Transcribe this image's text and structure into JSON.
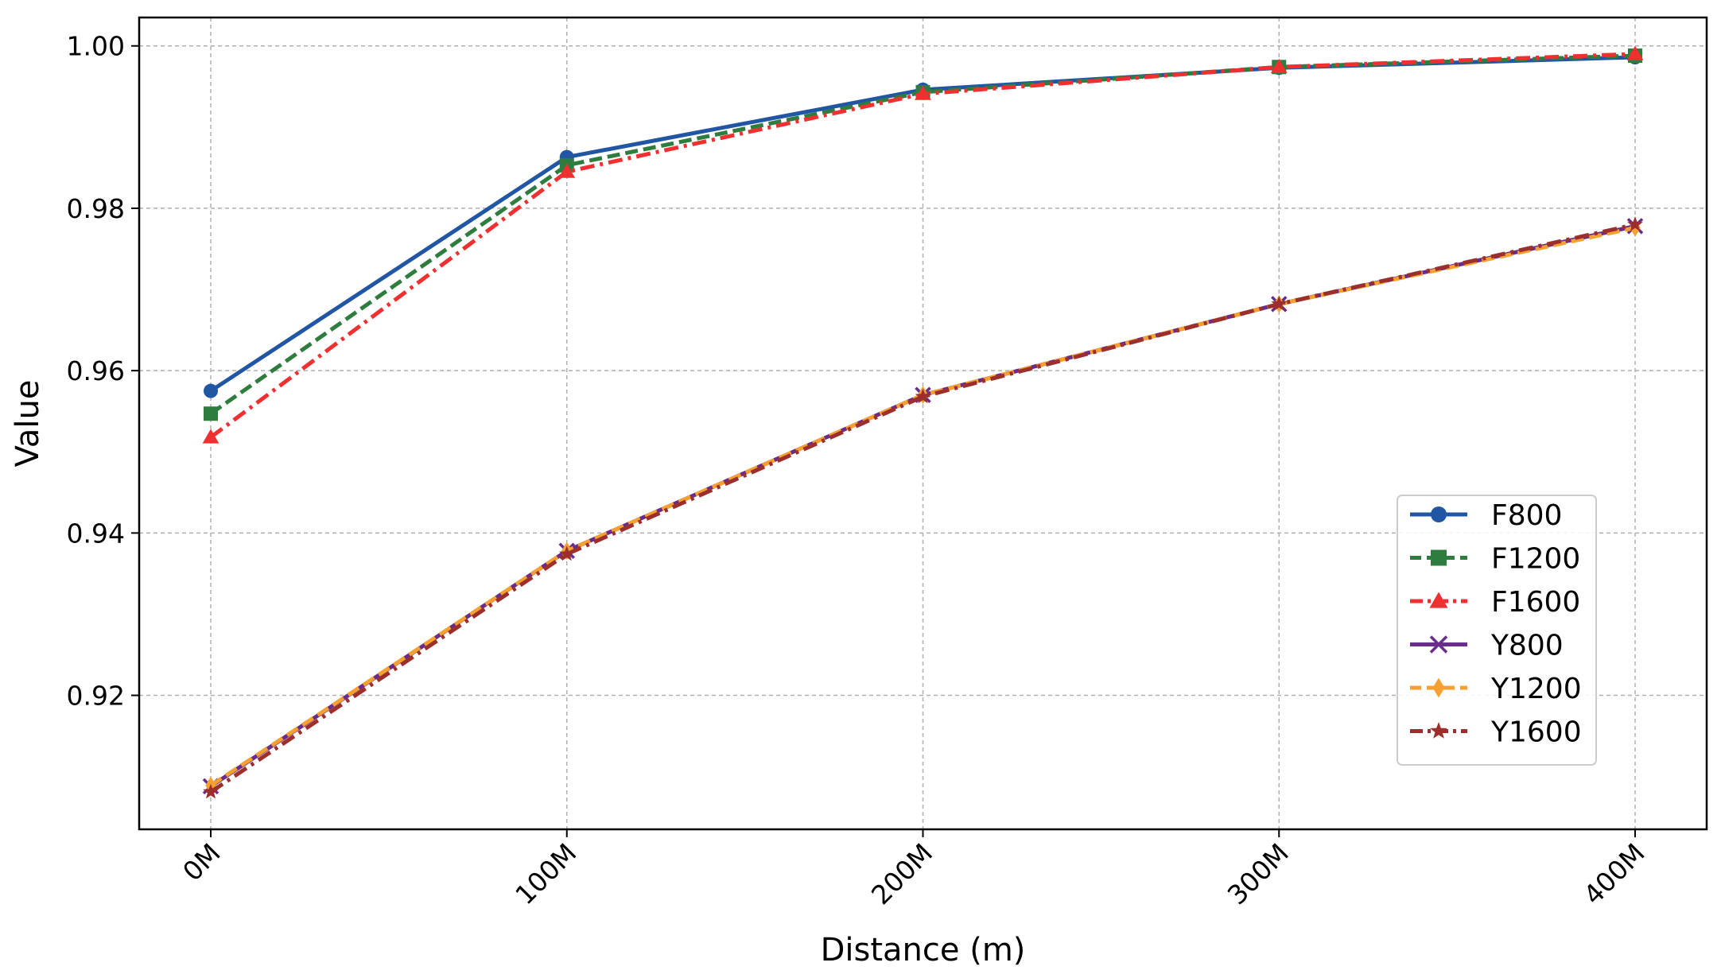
{
  "chart_data": {
    "type": "line",
    "title": "",
    "xlabel": "Distance (m)",
    "ylabel": "Value",
    "categories": [
      "0M",
      "100M",
      "200M",
      "300M",
      "400M"
    ],
    "ylim": [
      0.9035,
      1.0035
    ],
    "yticks": [
      "0.92",
      "0.94",
      "0.96",
      "0.98",
      "1.00"
    ],
    "grid": true,
    "legend_position": "lower-right",
    "series": [
      {
        "name": "F800",
        "values": [
          0.9575,
          0.9863,
          0.9946,
          0.9973,
          0.9986
        ],
        "color": "#2156a5",
        "marker": "circle",
        "dash": "solid"
      },
      {
        "name": "F1200",
        "values": [
          0.9547,
          0.9853,
          0.9943,
          0.9974,
          0.9988
        ],
        "color": "#2e7d3e",
        "marker": "square",
        "dash": "dashed"
      },
      {
        "name": "F1600",
        "values": [
          0.9518,
          0.9845,
          0.9941,
          0.9974,
          0.999
        ],
        "color": "#f03030",
        "marker": "triangle",
        "dash": "dashdot"
      },
      {
        "name": "Y800",
        "values": [
          0.9088,
          0.9378,
          0.957,
          0.9682,
          0.9778
        ],
        "color": "#6a2c8a",
        "marker": "x",
        "dash": "solid"
      },
      {
        "name": "Y1200",
        "values": [
          0.9089,
          0.9378,
          0.957,
          0.9682,
          0.9776
        ],
        "color": "#f5a030",
        "marker": "diamond",
        "dash": "dashed"
      },
      {
        "name": "Y1600",
        "values": [
          0.9081,
          0.9374,
          0.9568,
          0.9682,
          0.978
        ],
        "color": "#9c2f2c",
        "marker": "star",
        "dash": "dashdot"
      }
    ]
  }
}
